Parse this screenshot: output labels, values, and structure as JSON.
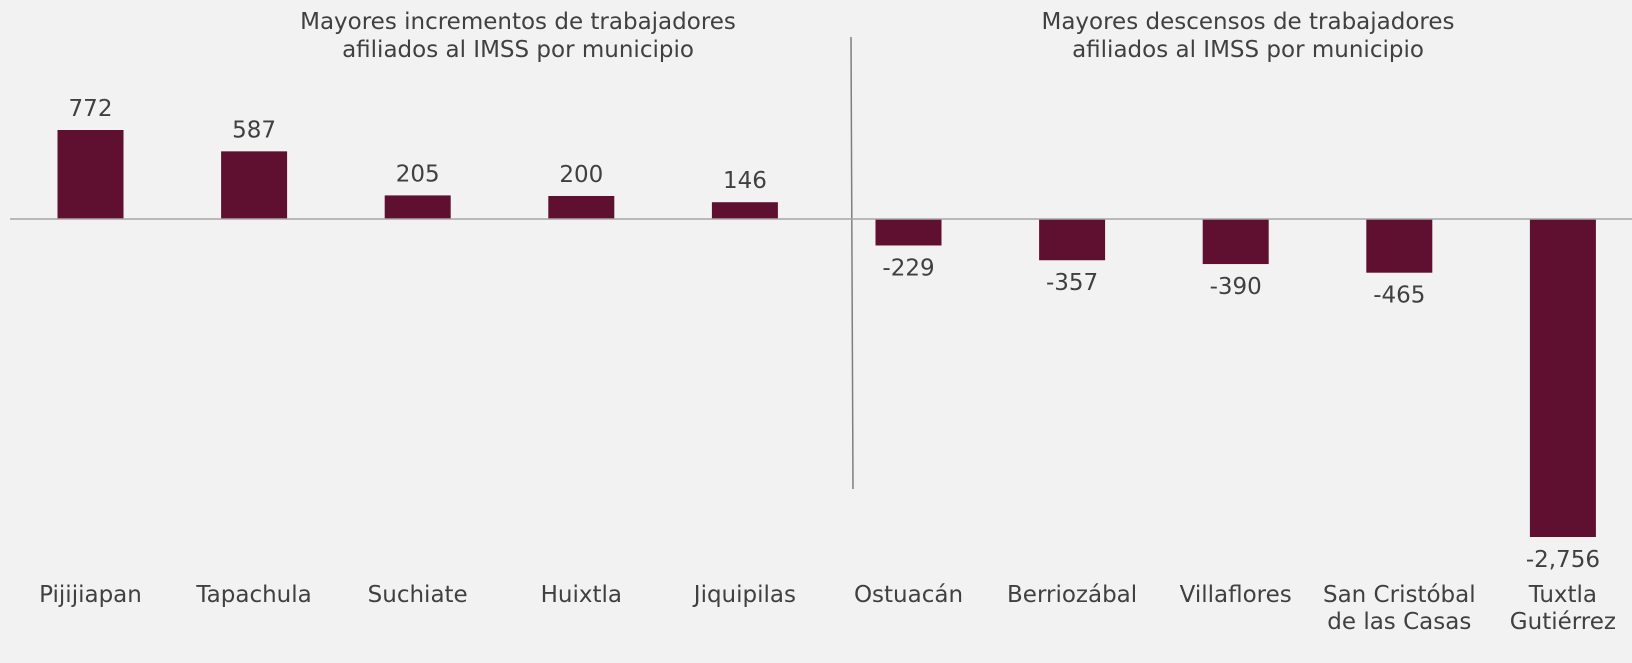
{
  "chart_data": {
    "type": "bar",
    "annotations": [
      "Mayores incrementos de trabajadores afiliados al IMSS por municipio",
      "Mayores descensos de trabajadores afiliados al IMSS por municipio"
    ],
    "categories": [
      "Pijijiapan",
      "Tapachula",
      "Suchiate",
      "Huixtla",
      "Jiquipilas",
      "Ostuacán",
      "Berriozábal",
      "Villaflores",
      "San Cristóbal de las Casas",
      "Tuxtla Gutiérrez"
    ],
    "values": [
      772,
      587,
      205,
      200,
      146,
      -229,
      -357,
      -390,
      -465,
      -2756
    ],
    "value_labels": [
      "772",
      "587",
      "205",
      "200",
      "146",
      "-229",
      "-357",
      "-390",
      "-465",
      "-2,756"
    ],
    "color": "#5f1030"
  }
}
